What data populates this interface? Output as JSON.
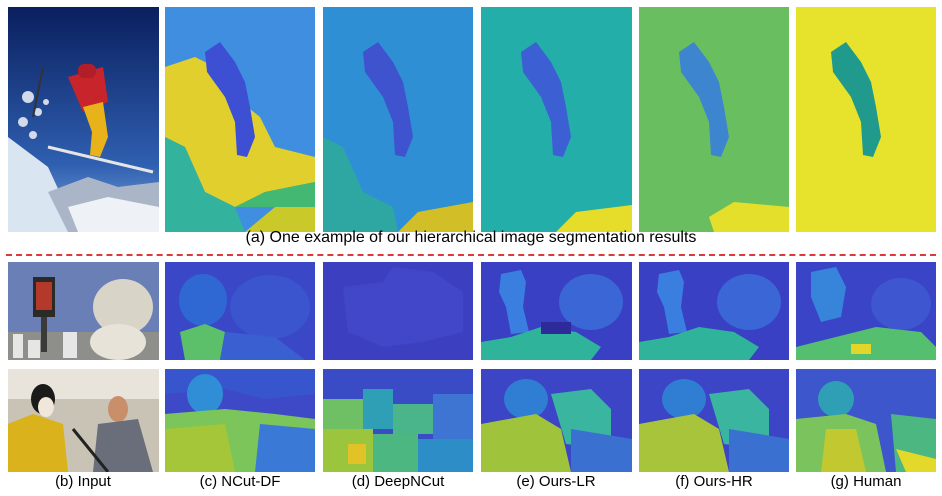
{
  "figure": {
    "caption_top": "(a) One example of our hierarchical image segmentation results",
    "column_labels": [
      "(b) Input",
      "(c) NCut-DF",
      "(d) DeepNCut",
      "(e) Ours-LR",
      "(f) Ours-HR",
      "(g) Human"
    ]
  },
  "colors": {
    "divider": "#d93a3a",
    "viridis_blue": "#3b56d0",
    "viridis_teal": "#22a79a",
    "viridis_green": "#63bd6a",
    "viridis_yellow": "#e7df2a"
  }
}
